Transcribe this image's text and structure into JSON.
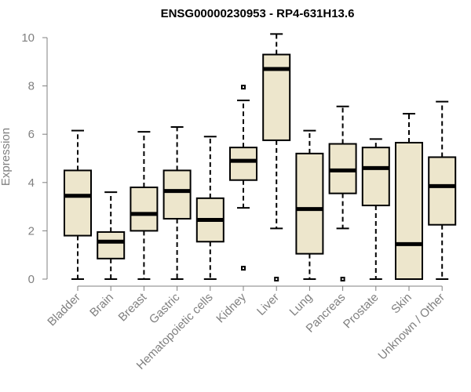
{
  "chart_data": {
    "type": "boxplot",
    "title": "ENSG00000230953 - RP4-631H13.6",
    "xlabel": "",
    "ylabel": "Expression",
    "ylim": [
      0,
      10
    ],
    "yticks": [
      0,
      2,
      4,
      6,
      8,
      10
    ],
    "colors": {
      "box_fill": "#ede6cc",
      "stroke": "#000000",
      "axis": "#808080"
    },
    "categories": [
      "Bladder",
      "Brain",
      "Breast",
      "Gastric",
      "Hematopoietic cells",
      "Kidney",
      "Liver",
      "Lung",
      "Pancreas",
      "Prostate",
      "Skin",
      "Unknown / Other"
    ],
    "boxes": [
      {
        "min": 0,
        "q1": 1.8,
        "median": 3.45,
        "q3": 4.5,
        "max": 6.15,
        "outliers": []
      },
      {
        "min": 0,
        "q1": 0.85,
        "median": 1.55,
        "q3": 1.95,
        "max": 3.6,
        "outliers": []
      },
      {
        "min": 0,
        "q1": 2.0,
        "median": 2.7,
        "q3": 3.8,
        "max": 6.1,
        "outliers": []
      },
      {
        "min": 0,
        "q1": 2.5,
        "median": 3.65,
        "q3": 4.5,
        "max": 6.3,
        "outliers": []
      },
      {
        "min": 0,
        "q1": 1.55,
        "median": 2.45,
        "q3": 3.35,
        "max": 5.9,
        "outliers": []
      },
      {
        "min": 2.95,
        "q1": 4.1,
        "median": 4.9,
        "q3": 5.45,
        "max": 7.4,
        "outliers": [
          7.95,
          0.45
        ]
      },
      {
        "min": 2.1,
        "q1": 5.75,
        "median": 8.7,
        "q3": 9.3,
        "max": 10.15,
        "outliers": [
          0
        ]
      },
      {
        "min": 0,
        "q1": 1.05,
        "median": 2.9,
        "q3": 5.2,
        "max": 6.15,
        "outliers": []
      },
      {
        "min": 2.1,
        "q1": 3.55,
        "median": 4.5,
        "q3": 5.6,
        "max": 7.15,
        "outliers": [
          0
        ]
      },
      {
        "min": 0,
        "q1": 3.05,
        "median": 4.6,
        "q3": 5.45,
        "max": 5.8,
        "outliers": []
      },
      {
        "min": 0,
        "q1": 0,
        "median": 1.45,
        "q3": 5.65,
        "max": 6.85,
        "outliers": []
      },
      {
        "min": 0,
        "q1": 2.25,
        "median": 3.85,
        "q3": 5.05,
        "max": 7.35,
        "outliers": []
      }
    ]
  }
}
